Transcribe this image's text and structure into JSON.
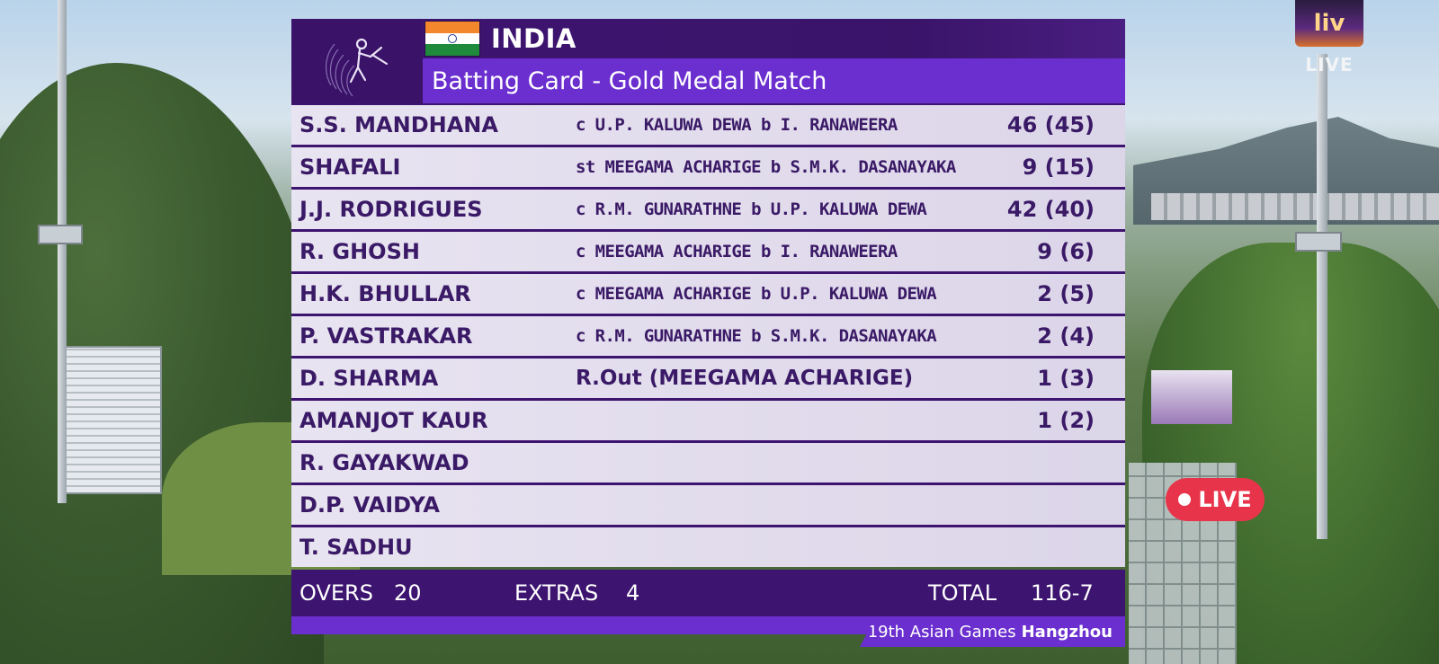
{
  "broadcast": {
    "brand_logo_text": "liv",
    "brand_live_text": "LIVE",
    "live_badge_text": "LIVE",
    "accent_color": "#e8344a"
  },
  "scorecard": {
    "team": "INDIA",
    "subtitle": "Batting Card - Gold Medal Match",
    "colors": {
      "primary": "#3d1470",
      "secondary": "#6b2fcf",
      "text": "#3a1a66"
    },
    "batters": [
      {
        "name": "S.S. MANDHANA",
        "dismissal": "c U.P. KALUWA DEWA b I. RANAWEERA",
        "score": "46 (45)"
      },
      {
        "name": "SHAFALI",
        "dismissal": "st MEEGAMA ACHARIGE b S.M.K. DASANAYAKA",
        "score": "9 (15)"
      },
      {
        "name": "J.J. RODRIGUES",
        "dismissal": "c R.M. GUNARATHNE b U.P. KALUWA DEWA",
        "score": "42 (40)"
      },
      {
        "name": "R. GHOSH",
        "dismissal": "c MEEGAMA ACHARIGE b I. RANAWEERA",
        "score": "9 (6)"
      },
      {
        "name": "H.K. BHULLAR",
        "dismissal": "c MEEGAMA ACHARIGE b U.P. KALUWA DEWA",
        "score": "2 (5)"
      },
      {
        "name": "P. VASTRAKAR",
        "dismissal": "c R.M. GUNARATHNE b S.M.K. DASANAYAKA",
        "score": "2 (4)"
      },
      {
        "name": "D. SHARMA",
        "dismissal": "R.Out (MEEGAMA ACHARIGE)",
        "score": "1 (3)"
      },
      {
        "name": "AMANJOT KAUR",
        "dismissal": "",
        "score": "1 (2)"
      },
      {
        "name": "R. GAYAKWAD",
        "dismissal": "",
        "score": ""
      },
      {
        "name": "D.P. VAIDYA",
        "dismissal": "",
        "score": ""
      },
      {
        "name": "T. SADHU",
        "dismissal": "",
        "score": ""
      }
    ],
    "footer": {
      "overs_label": "OVERS",
      "overs_value": "20",
      "extras_label": "EXTRAS",
      "extras_value": "4",
      "total_label": "TOTAL",
      "total_value": "116-7"
    },
    "event_prefix": "19th Asian Games",
    "event_city": "Hangzhou"
  }
}
